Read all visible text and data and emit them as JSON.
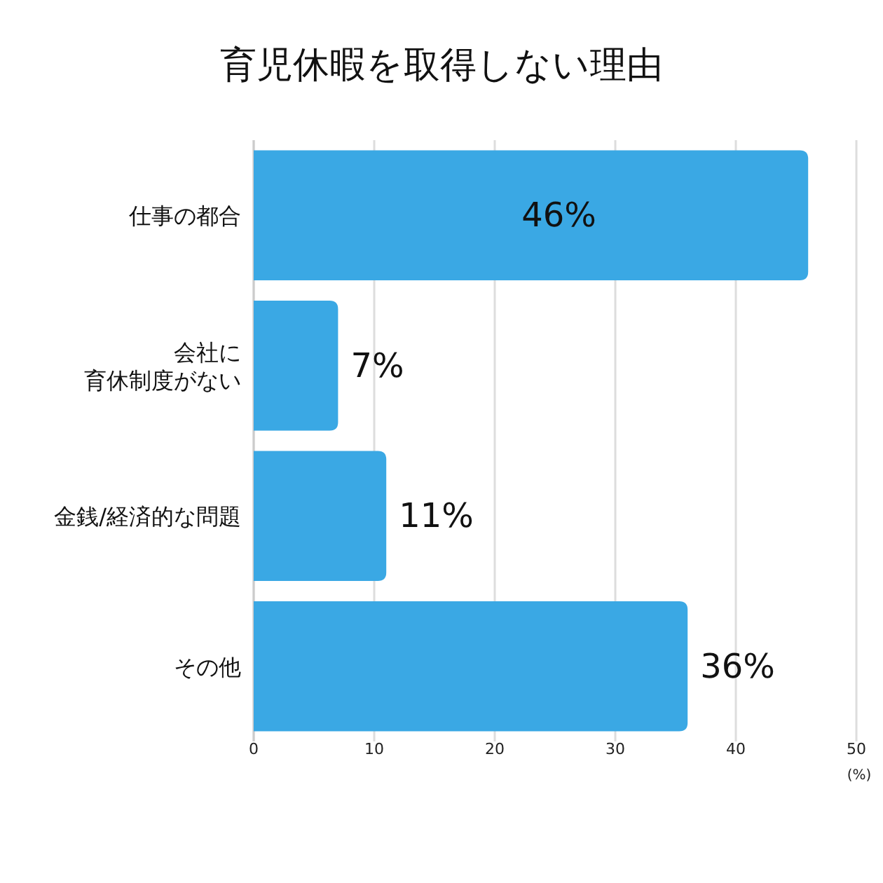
{
  "chart_data": {
    "type": "bar",
    "orientation": "horizontal",
    "title": "育児休暇を取得しない理由",
    "categories": [
      "仕事の都合",
      "会社に育休制度がない",
      "金銭/経済的な問題",
      "その他"
    ],
    "values": [
      46,
      7,
      11,
      36
    ],
    "value_labels": [
      "46%",
      "7%",
      "11%",
      "36%"
    ],
    "color": "#3aa8e4",
    "xlim": [
      0,
      50
    ],
    "xticks": [
      0,
      10,
      20,
      30,
      40,
      50
    ],
    "xlabel": "(%)",
    "grid": "x"
  }
}
